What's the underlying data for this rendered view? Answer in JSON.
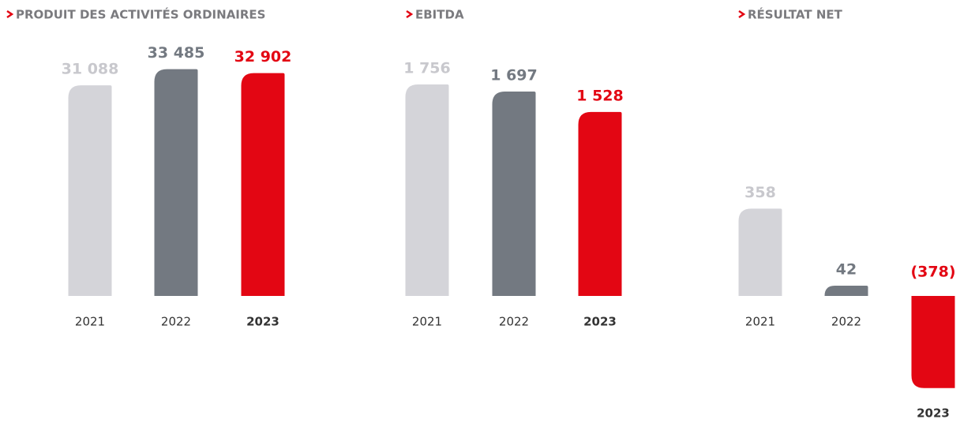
{
  "chart_data": [
    {
      "type": "bar",
      "title": "PRODUIT DES ACTIVITÉS ORDINAIRES",
      "categories": [
        "2021",
        "2022",
        "2023"
      ],
      "values": [
        31088,
        33485,
        32902
      ],
      "value_labels": [
        "31 088",
        "33 485",
        "32 902"
      ],
      "colors": [
        "#d4d4d9",
        "#737981",
        "#e30613"
      ],
      "ylim": [
        0,
        36000
      ]
    },
    {
      "type": "bar",
      "title": "EBITDA",
      "categories": [
        "2021",
        "2022",
        "2023"
      ],
      "values": [
        1756,
        1697,
        1528
      ],
      "value_labels": [
        "1 756",
        "1 697",
        "1 528"
      ],
      "colors": [
        "#d4d4d9",
        "#737981",
        "#e30613"
      ],
      "ylim": [
        0,
        2025
      ]
    },
    {
      "type": "bar",
      "title": "RÉSULTAT NET",
      "categories": [
        "2021",
        "2022",
        "2023"
      ],
      "values": [
        358,
        42,
        -378
      ],
      "value_labels": [
        "358",
        "42",
        "(378)"
      ],
      "colors": [
        "#d4d4d9",
        "#737981",
        "#e30613"
      ],
      "ylim": [
        -400,
        1000
      ]
    }
  ]
}
